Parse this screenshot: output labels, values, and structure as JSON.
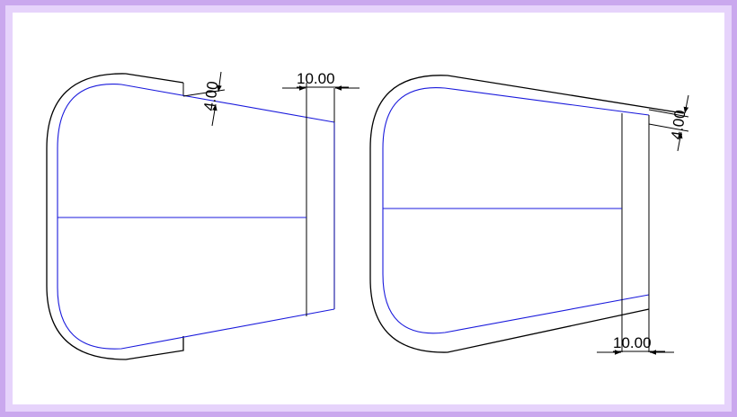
{
  "drawing": {
    "left_view": {
      "dim_offset_label": "4.00",
      "dim_extension_label": "10.00"
    },
    "right_view": {
      "dim_offset_label": "4.00",
      "dim_extension_label": "10.00"
    },
    "colors": {
      "outline": "#000000",
      "inner_contour": "#1a1adc",
      "border_outer": "#caa8ee",
      "border_inner": "#e6d3fb",
      "background": "#ffffff"
    }
  }
}
